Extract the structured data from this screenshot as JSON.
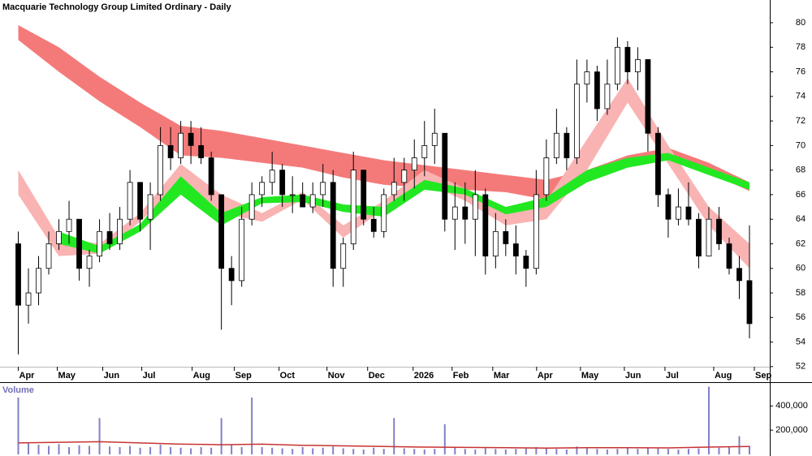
{
  "chart_data": [
    {
      "type": "candlestick",
      "title": "Macquarie Technology Group Limited Ordinary - Daily",
      "x": [
        0,
        1,
        2,
        3,
        4,
        5,
        6,
        7,
        8,
        9,
        10,
        11,
        12,
        13,
        14,
        15,
        16,
        17,
        18,
        19,
        20,
        21,
        22,
        23,
        24,
        25,
        26,
        27,
        28,
        29,
        30,
        31,
        32,
        33,
        34,
        35,
        36,
        37,
        38,
        39,
        40,
        41,
        42,
        43,
        44,
        45,
        46,
        47,
        48,
        49,
        50,
        51,
        52,
        53,
        54,
        55,
        56,
        57,
        58,
        59,
        60,
        61,
        62,
        63,
        64,
        65,
        66,
        67,
        68,
        69,
        70,
        71,
        72
      ],
      "open": [
        62,
        57,
        58,
        60,
        62,
        63,
        64,
        60,
        61,
        63,
        62,
        64,
        67,
        64,
        66,
        70,
        69,
        71,
        70,
        69,
        66,
        60,
        59,
        64,
        66,
        67,
        68,
        66,
        66,
        65,
        66,
        67,
        60,
        62,
        68,
        64,
        63,
        66,
        67,
        68,
        69,
        70,
        71,
        64,
        65,
        64,
        66,
        61,
        63,
        62,
        61,
        60,
        66,
        69,
        71,
        69,
        75,
        76,
        73,
        75,
        78,
        76,
        77,
        71,
        66,
        64,
        65,
        64,
        61,
        64,
        62,
        60,
        59
      ],
      "high": [
        63,
        60,
        61,
        63,
        64,
        65.5,
        64,
        61.5,
        64,
        64.5,
        65,
        68,
        67,
        67,
        71.5,
        71.5,
        72,
        72,
        71.5,
        69.5,
        66,
        61,
        65,
        67,
        67.5,
        69.5,
        68.5,
        67.5,
        67,
        67,
        68.5,
        68,
        62.5,
        69.5,
        68,
        65,
        66.5,
        69,
        69,
        70.5,
        72,
        73,
        71,
        67,
        67,
        68,
        66.5,
        64.5,
        64,
        63.5,
        61.5,
        68,
        70.5,
        73,
        71.5,
        77,
        77,
        76.5,
        77,
        78.8,
        78.5,
        78,
        77,
        71.5,
        66.5,
        66.5,
        67,
        64.5,
        65,
        65,
        62.5,
        61,
        63.5
      ],
      "low": [
        53,
        55.5,
        57,
        59.5,
        61.5,
        62,
        59,
        58.5,
        60.5,
        61.5,
        61.5,
        63.5,
        63,
        61.5,
        65.5,
        68,
        68.5,
        68.5,
        68.5,
        65.5,
        55,
        57,
        58.5,
        63.5,
        65,
        66,
        65,
        64.5,
        65,
        64.5,
        65,
        58.5,
        58.5,
        61.5,
        63.5,
        62.5,
        62.5,
        65.5,
        65.5,
        66.5,
        67.5,
        68.5,
        63,
        61.5,
        62,
        61,
        59.5,
        60,
        61,
        59.5,
        58.5,
        59.5,
        65.5,
        68.5,
        68,
        68.5,
        73.5,
        72,
        72.5,
        74.5,
        75,
        74.5,
        69.5,
        65,
        62.5,
        63.5,
        63.5,
        60,
        61,
        61.5,
        59.5,
        57.5,
        54.3
      ],
      "close": [
        57,
        58,
        60,
        62,
        63,
        64,
        60,
        61,
        63,
        62,
        64,
        67,
        64,
        66,
        70,
        69,
        71,
        70,
        69,
        66,
        60,
        59,
        64,
        66,
        67,
        68,
        66,
        66,
        65,
        66,
        67,
        60,
        62,
        68,
        64,
        63,
        66,
        67,
        68,
        69,
        70,
        71,
        64,
        65,
        64,
        66,
        61,
        63,
        62,
        61,
        60,
        66,
        69,
        71,
        69,
        75,
        76,
        73,
        75,
        78,
        76,
        77,
        71,
        66,
        64,
        65,
        64,
        61,
        64,
        62,
        60,
        59,
        55.5
      ],
      "up_color": "#ffffff",
      "down_color": "#000000",
      "band_x": [
        0,
        4,
        8,
        12,
        16,
        20,
        24,
        28,
        32,
        36,
        40,
        44,
        48,
        52,
        56,
        60,
        64,
        68,
        72
      ],
      "bands": [
        {
          "color": "#f47a7a",
          "upper": [
            79.8,
            78,
            75.6,
            73.5,
            71.6,
            71.2,
            70.6,
            70,
            69.4,
            68.8,
            68.4,
            68,
            67.6,
            67.2,
            68,
            69.2,
            69.8,
            68.6,
            67
          ],
          "lower": [
            78.6,
            76,
            73.6,
            71.5,
            69.2,
            69,
            68.6,
            68.2,
            67.4,
            66.8,
            66.6,
            66.4,
            66.2,
            65.6,
            67,
            68.6,
            69.2,
            67.8,
            66.3
          ]
        },
        {
          "color": "#f9b3b3",
          "upper": [
            68,
            62.5,
            62,
            64.5,
            68.5,
            66,
            64.5,
            66.2,
            63.5,
            65.5,
            68,
            66.5,
            64.5,
            65.5,
            70.5,
            75.5,
            70,
            65,
            62
          ],
          "lower": [
            66,
            61,
            61.2,
            63.8,
            67,
            64.5,
            63.8,
            65.6,
            62.5,
            64.8,
            67,
            65.5,
            63.5,
            64,
            68,
            73.5,
            68.5,
            63.5,
            60
          ]
        },
        {
          "color": "#22e822",
          "upper": [
            null,
            63,
            61.8,
            63.6,
            67.5,
            64.5,
            65.8,
            66,
            65.2,
            65,
            67.2,
            66.5,
            65,
            65.8,
            68,
            69,
            69.4,
            68.2,
            67
          ],
          "lower": [
            null,
            62,
            61.2,
            63,
            66,
            63.5,
            65.3,
            65.4,
            64.6,
            64.2,
            66.4,
            66,
            64.4,
            65,
            67,
            68.2,
            68.8,
            67.6,
            66.4
          ]
        }
      ],
      "xlim": [
        -1.8,
        74
      ],
      "ylim": [
        50.8,
        81.85
      ],
      "yticks": [
        52,
        54,
        56,
        58,
        60,
        62,
        64,
        66,
        68,
        70,
        72,
        74,
        76,
        78,
        80
      ],
      "xticks": [
        {
          "value": 0,
          "label": "Apr"
        },
        {
          "value": 3.84,
          "label": "May"
        },
        {
          "value": 8.32,
          "label": "Jun"
        },
        {
          "value": 12.16,
          "label": "Jul"
        },
        {
          "value": 17.12,
          "label": "Aug"
        },
        {
          "value": 21.28,
          "label": "Sep"
        },
        {
          "value": 25.68,
          "label": "Oct"
        },
        {
          "value": 30.4,
          "label": "Nov"
        },
        {
          "value": 34.4,
          "label": "Dec"
        },
        {
          "value": 38.88,
          "label": "2026"
        },
        {
          "value": 42.72,
          "label": "Feb"
        },
        {
          "value": 46.72,
          "label": "Mar"
        },
        {
          "value": 51.04,
          "label": "Apr"
        },
        {
          "value": 55.36,
          "label": "May"
        },
        {
          "value": 59.68,
          "label": "Jun"
        },
        {
          "value": 63.68,
          "label": "Jul"
        },
        {
          "value": 68.48,
          "label": "Aug"
        },
        {
          "value": 72.48,
          "label": "Sep"
        }
      ]
    },
    {
      "type": "bar",
      "title": "Volume",
      "color": "#8080c8",
      "x": [
        0,
        1,
        2,
        3,
        4,
        5,
        6,
        7,
        8,
        9,
        10,
        11,
        12,
        13,
        14,
        15,
        16,
        17,
        18,
        19,
        20,
        21,
        22,
        23,
        24,
        25,
        26,
        27,
        28,
        29,
        30,
        31,
        32,
        33,
        34,
        35,
        36,
        37,
        38,
        39,
        40,
        41,
        42,
        43,
        44,
        45,
        46,
        47,
        48,
        49,
        50,
        51,
        52,
        53,
        54,
        55,
        56,
        57,
        58,
        59,
        60,
        61,
        62,
        63,
        64,
        65,
        66,
        67,
        68,
        69,
        70,
        71,
        72
      ],
      "values": [
        470000,
        90000,
        80000,
        70000,
        85000,
        60000,
        75000,
        70000,
        300000,
        65000,
        60000,
        70000,
        55000,
        60000,
        80000,
        60000,
        55000,
        50000,
        60000,
        55000,
        300000,
        80000,
        60000,
        470000,
        60000,
        55000,
        50000,
        45000,
        60000,
        50000,
        55000,
        65000,
        50000,
        45000,
        40000,
        55000,
        45000,
        300000,
        50000,
        45000,
        40000,
        45000,
        250000,
        55000,
        45000,
        40000,
        50000,
        45000,
        40000,
        45000,
        50000,
        60000,
        55000,
        45000,
        40000,
        65000,
        50000,
        45000,
        40000,
        45000,
        50000,
        45000,
        55000,
        50000,
        45000,
        40000,
        45000,
        50000,
        560000,
        55000,
        60000,
        150000,
        70000
      ],
      "ma_color": "#c83232",
      "ma_x": [
        0,
        4,
        8,
        12,
        16,
        20,
        24,
        28,
        32,
        36,
        40,
        44,
        48,
        52,
        56,
        60,
        64,
        68,
        72
      ],
      "ma": [
        95000,
        100000,
        105000,
        95000,
        85000,
        80000,
        85000,
        75000,
        70000,
        65000,
        60000,
        58000,
        55000,
        52000,
        55000,
        55000,
        54000,
        60000,
        65000
      ],
      "xlim": [
        -1.8,
        74
      ],
      "ylim": [
        0,
        590000
      ],
      "yticks": [
        {
          "value": 400000,
          "label": "400,000"
        },
        {
          "value": 200000,
          "label": "200,000"
        }
      ]
    }
  ]
}
